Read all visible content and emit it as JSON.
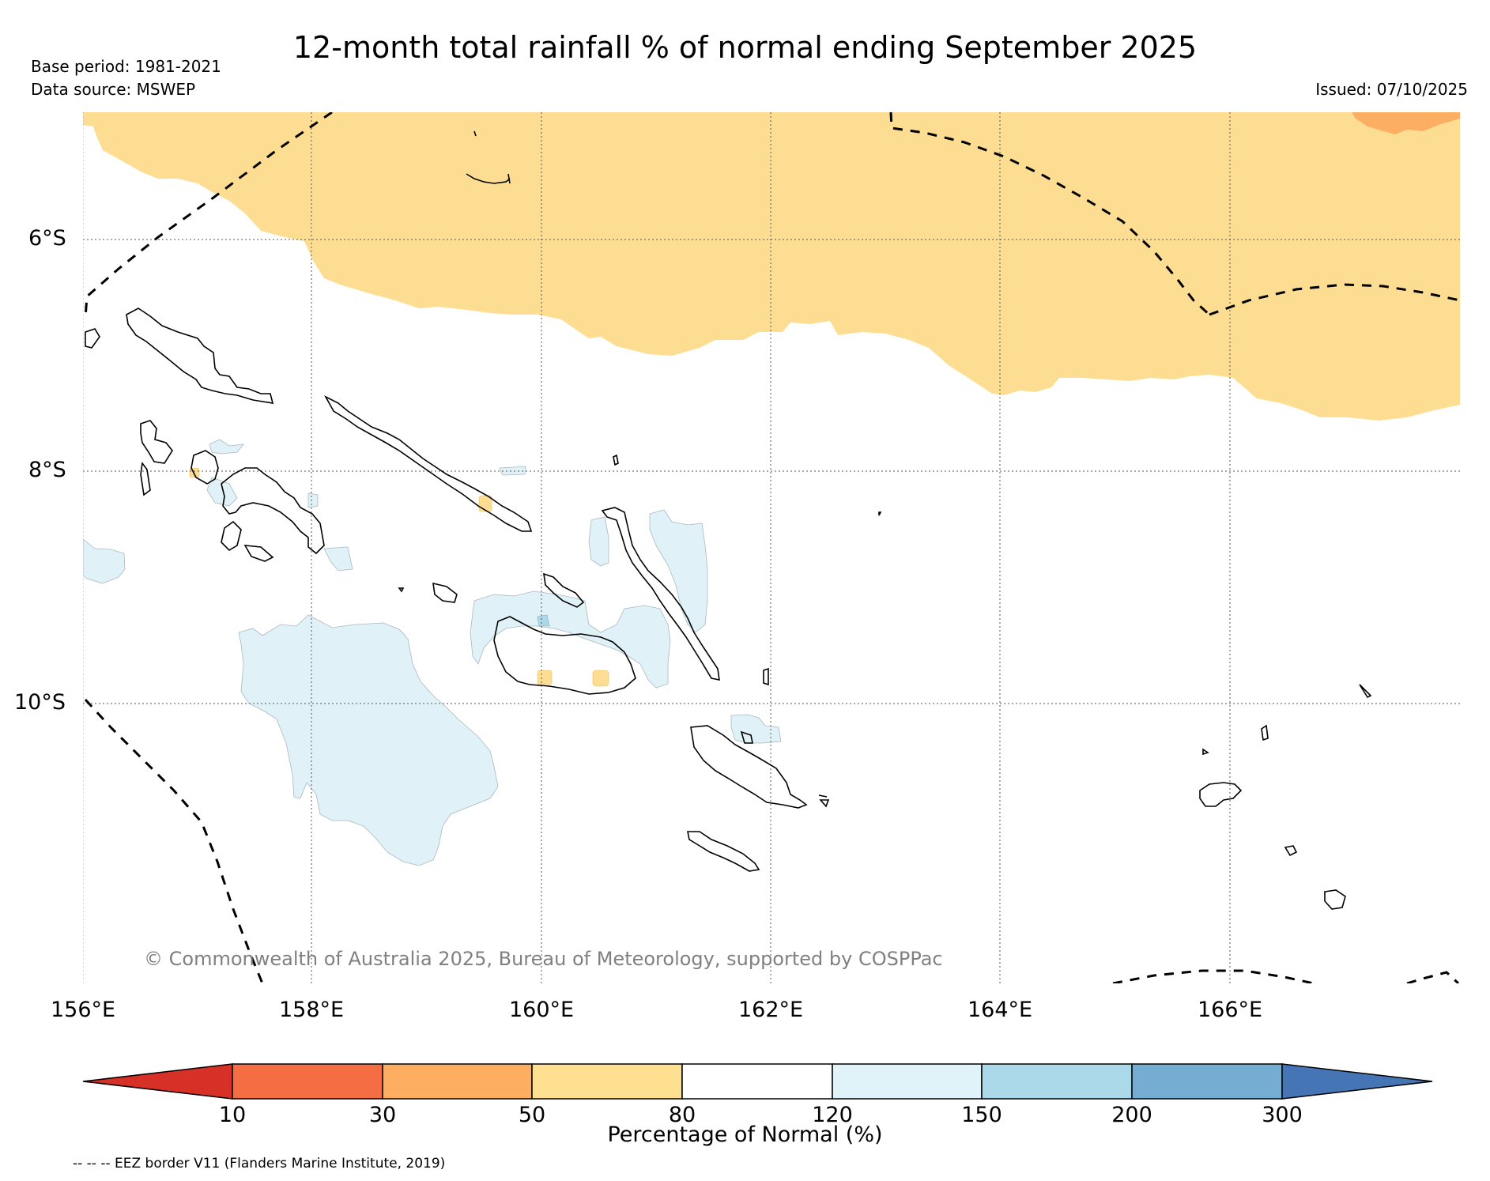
{
  "header": {
    "title": "12-month total rainfall % of normal ending September 2025",
    "base_period": "Base period: 1981-2021",
    "data_source": "Data source: MSWEP",
    "issued": "Issued: 07/10/2025"
  },
  "map": {
    "lat_labels": [
      "6°S",
      "8°S",
      "10°S"
    ],
    "lon_labels": [
      "156°E",
      "158°E",
      "160°E",
      "162°E",
      "164°E",
      "166°E"
    ],
    "copyright": "© Commonwealth of Australia 2025, Bureau of Meteorology, supported by COSPPac",
    "colors": {
      "dry_50_80": "#fddd92",
      "dry_30_50": "#fcae63",
      "wet_120_150": "#e0f2f8",
      "wet_150_200": "#abd9e9",
      "coast": "#000000",
      "eez": "#000000",
      "grid": "#555555"
    }
  },
  "colorbar": {
    "label": "Percentage of Normal (%)",
    "ticks": [
      "10",
      "30",
      "50",
      "80",
      "120",
      "150",
      "200",
      "300"
    ],
    "colors": [
      "#d73027",
      "#f46d43",
      "#fdae61",
      "#fee090",
      "#ffffff",
      "#e0f3f8",
      "#abd9e9",
      "#74add1",
      "#4575b4"
    ]
  },
  "legend": {
    "eez_note": "-- -- -- EEZ border V11 (Flanders Marine Institute, 2019)"
  }
}
